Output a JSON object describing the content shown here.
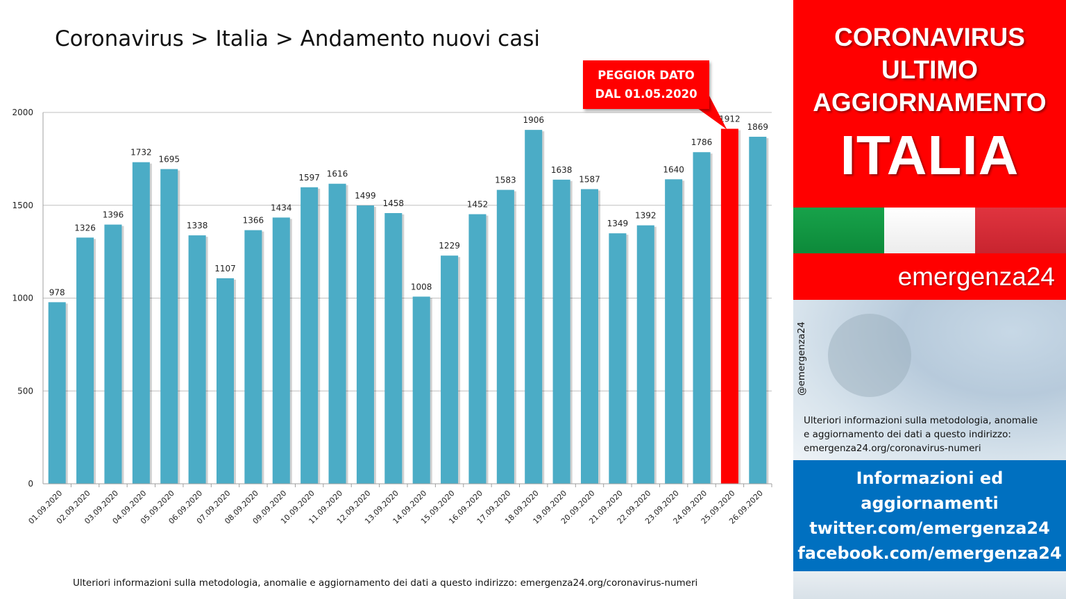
{
  "title": "Coronavirus > Italia > Andamento nuovi casi",
  "footer_note": "Ulteriori informazioni sulla metodologia, anomalie e aggiornamento dei dati a questo indirizzo: emergenza24.org/coronavirus-numeri",
  "callout": {
    "line1": "PEGGIOR DATO",
    "line2": "DAL 01.05.2020"
  },
  "colors": {
    "bar": "#4bacc6",
    "highlight": "#ff0000",
    "grid": "#bfbfbf",
    "accent_red": "#ff0000",
    "accent_blue": "#0070c0"
  },
  "chart_data": {
    "type": "bar",
    "title": "Coronavirus > Italia > Andamento nuovi casi",
    "categories": [
      "01.09.2020",
      "02.09.2020",
      "03.09.2020",
      "04.09.2020",
      "05.09.2020",
      "06.09.2020",
      "07.09.2020",
      "08.09.2020",
      "09.09.2020",
      "10.09.2020",
      "11.09.2020",
      "12.09.2020",
      "13.09.2020",
      "14.09.2020",
      "15.09.2020",
      "16.09.2020",
      "17.09.2020",
      "18.09.2020",
      "19.09.2020",
      "20.09.2020",
      "21.09.2020",
      "22.09.2020",
      "23.09.2020",
      "24.09.2020",
      "25.09.2020",
      "26.09.2020"
    ],
    "values": [
      978,
      1326,
      1396,
      1732,
      1695,
      1338,
      1107,
      1366,
      1434,
      1597,
      1616,
      1499,
      1458,
      1008,
      1229,
      1452,
      1583,
      1906,
      1638,
      1587,
      1349,
      1392,
      1640,
      1786,
      1912,
      1869
    ],
    "highlight_category": "25.09.2020",
    "ylim": [
      0,
      2000
    ],
    "yticks": [
      0,
      500,
      1000,
      1500,
      2000
    ],
    "grid": true,
    "data_labels": true,
    "xlabel": "",
    "ylabel": ""
  },
  "side": {
    "header_line1": "CORONAVIRUS",
    "header_line2": "ULTIMO",
    "header_line3": "AGGIORNAMENTO",
    "header_big": "ITALIA",
    "brand": "emergenza24",
    "handle": "@emergenza24",
    "info_line1": "Ulteriori informazioni sulla metodologia, anomalie",
    "info_line2": "e aggiornamento dei dati a questo indirizzo:",
    "info_line3": "emergenza24.org/coronavirus-numeri",
    "blue_line1": "Informazioni ed",
    "blue_line2": "aggiornamenti",
    "blue_line3": "twitter.com/emergenza24",
    "blue_line4": "facebook.com/emergenza24"
  }
}
